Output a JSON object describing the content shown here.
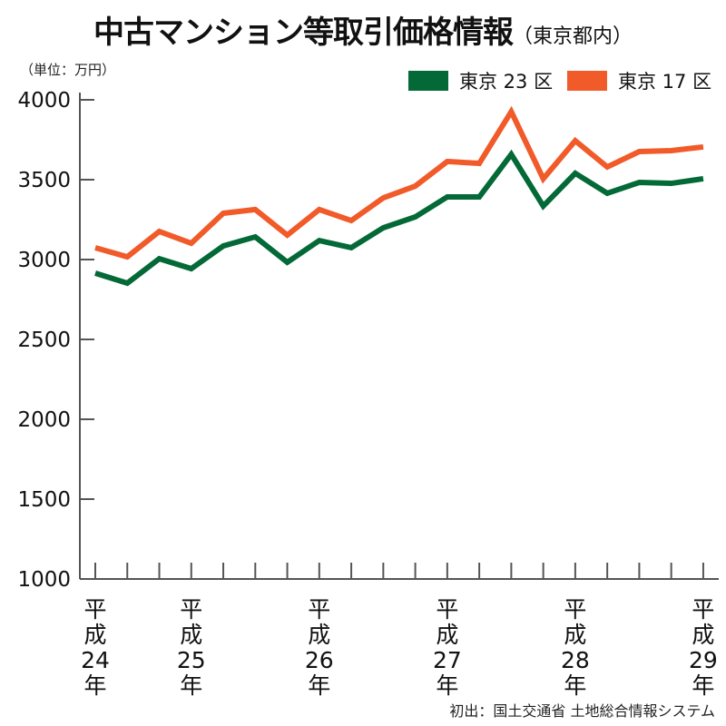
{
  "chart_data": {
    "type": "line",
    "title": "中古マンション等取引価格情報",
    "subtitle": "（東京都内）",
    "unit_label": "（単位：万円）",
    "source": "初出：国土交通省 土地総合情報システム",
    "ylim": [
      1000,
      4000
    ],
    "yticks": [
      "1000",
      "1500",
      "2000",
      "2500",
      "3000",
      "3500",
      "4000"
    ],
    "x_label_positions": [
      {
        "index": 0,
        "lines": [
          "平",
          "成",
          "24",
          "年"
        ]
      },
      {
        "index": 3,
        "lines": [
          "平",
          "成",
          "25",
          "年"
        ]
      },
      {
        "index": 7,
        "lines": [
          "平",
          "成",
          "26",
          "年"
        ]
      },
      {
        "index": 11,
        "lines": [
          "平",
          "成",
          "27",
          "年"
        ]
      },
      {
        "index": 15,
        "lines": [
          "平",
          "成",
          "28",
          "年"
        ]
      },
      {
        "index": 19,
        "lines": [
          "平",
          "成",
          "29",
          "年"
        ]
      }
    ],
    "legend_placement": "top-right",
    "grid": false,
    "series": [
      {
        "name": "東京 23 区",
        "color": "#036937",
        "values": [
          2915,
          2852,
          3005,
          2943,
          3085,
          3142,
          2983,
          3119,
          3074,
          3199,
          3267,
          3392,
          3392,
          3659,
          3335,
          3540,
          3415,
          3483,
          3477,
          3506
        ]
      },
      {
        "name": "東京 17 区",
        "color": "#f15a29",
        "values": [
          3074,
          3017,
          3176,
          3102,
          3290,
          3313,
          3153,
          3313,
          3244,
          3386,
          3460,
          3614,
          3602,
          3926,
          3506,
          3744,
          3580,
          3676,
          3682,
          3705
        ]
      }
    ]
  }
}
